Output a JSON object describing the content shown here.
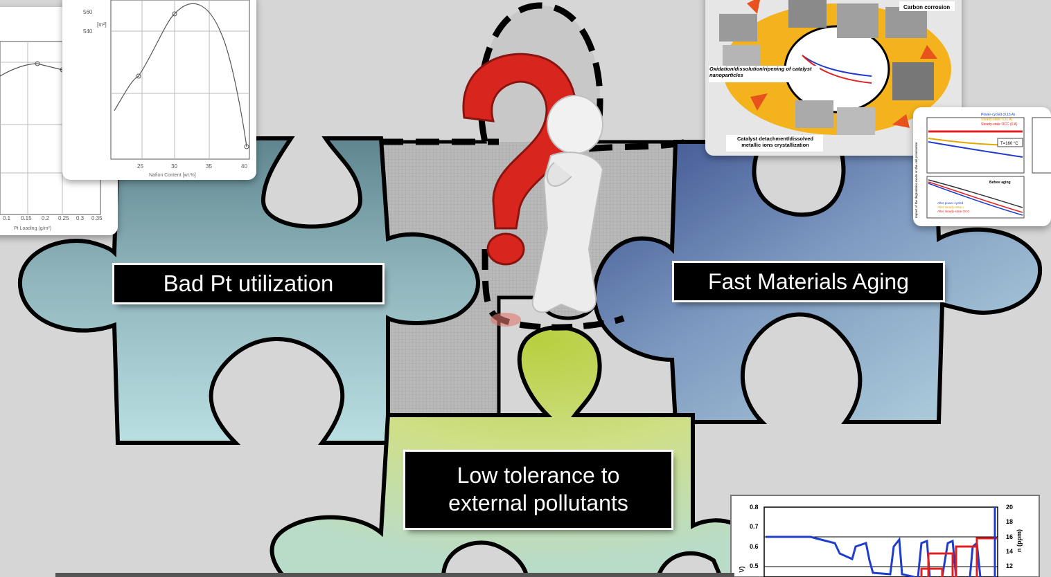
{
  "labels": {
    "bad_pt": "Bad Pt utilization",
    "fast_aging": "Fast Materials Aging",
    "low_tolerance_line1": "Low tolerance to",
    "low_tolerance_line2": "external pollutants"
  },
  "plot_left": {
    "x_ticks": [
      "0.1",
      "0.15",
      "0.2",
      "0.25",
      "0.3",
      "0.35"
    ],
    "x_label": "Pt Loading (g/m²)"
  },
  "plot_nafion": {
    "y_ticks": [
      "560",
      "540"
    ],
    "y_unit": "[m²]",
    "x_ticks": [
      "25",
      "30",
      "35",
      "40"
    ],
    "x_label": "Nafion Content [wt.%]"
  },
  "degradation_diagram": {
    "labels": {
      "carbon": "Carbon corrosion",
      "oxidation": "Oxidation/dissolution/ripening of catalyst nanoparticles",
      "detachment": "Catalyst detachment/dissolved metallic ions crystallization"
    }
  },
  "aging_plot": {
    "legend": [
      "Power-cycled (0.15 A)",
      "Steady-state I (11 A)",
      "Steady-state OCC (0 A)"
    ],
    "legend2": [
      "After power-cycled",
      "After steady-state I",
      "After steady-state OCC"
    ],
    "annotation": "T=160 °C",
    "before_label": "Before aging",
    "y_label": "Impact of the degradation mode on the cell polarization"
  },
  "pollutant_plot": {
    "y_ticks": [
      "0.8",
      "0.7",
      "0.6",
      "0.5"
    ],
    "y2_ticks": [
      "20",
      "18",
      "16",
      "14",
      "12"
    ],
    "y2_label": "n (ppm)",
    "y_label": "V)"
  },
  "colors": {
    "background": "#d6d6d6",
    "puzzle_left": "#97bcc0",
    "puzzle_right": "#8aa7c7",
    "puzzle_bottom": "#c9da73",
    "question_mark": "#d8251d",
    "degradation_ring": "#f4b21d"
  }
}
